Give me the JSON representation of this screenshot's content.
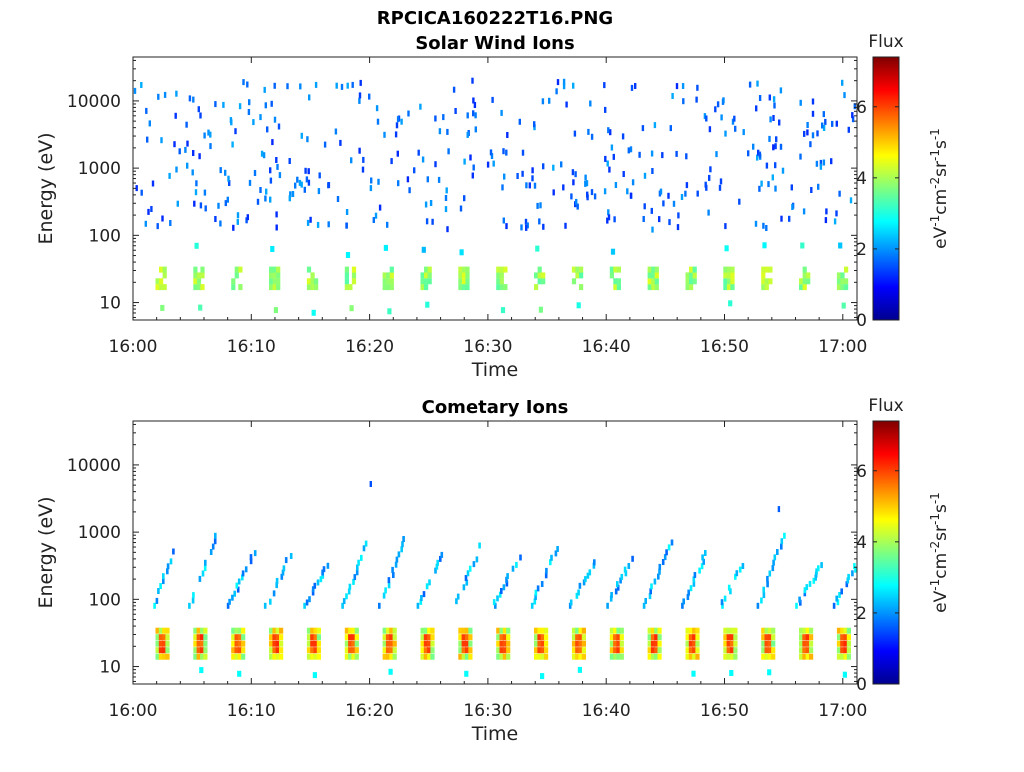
{
  "figure_title": "RPCICA160222T16.PNG",
  "colormap": [
    "#00008f",
    "#0000ff",
    "#007fff",
    "#00ffff",
    "#7fff7f",
    "#ffff00",
    "#ff7f00",
    "#ff0000",
    "#7f0000"
  ],
  "chart_data": [
    {
      "type": "heatmap",
      "title": "Solar Wind Ions",
      "xlabel": "Time",
      "ylabel": "Energy (eV)",
      "x_ticks": [
        "16:00",
        "16:10",
        "16:20",
        "16:30",
        "16:40",
        "16:50",
        "17:00"
      ],
      "x_range_minutes": [
        0,
        61.2
      ],
      "y_scale": "log",
      "y_ticks": [
        10,
        100,
        1000,
        10000
      ],
      "y_tick_labels": [
        "10",
        "100",
        "1000",
        "10000"
      ],
      "y_range": [
        5.5,
        45000
      ],
      "colorbar": {
        "label": "Flux",
        "units": "eV-1cm-2sr-1s-1",
        "ticks": [
          0,
          2,
          4,
          6
        ],
        "range": [
          0,
          7.4
        ]
      },
      "pattern": {
        "pulse_period_min": 3.2,
        "pulse_start_min": 1.9,
        "low_energy_core": [
          17,
          33
        ],
        "core_flux": [
          3.4,
          4.4
        ],
        "scatter_energy_range": [
          120,
          20000
        ],
        "scatter_flux": [
          1.2,
          2.2
        ]
      }
    },
    {
      "type": "heatmap",
      "title": "Cometary Ions",
      "xlabel": "Time",
      "ylabel": "Energy (eV)",
      "x_ticks": [
        "16:00",
        "16:10",
        "16:20",
        "16:30",
        "16:40",
        "16:50",
        "17:00"
      ],
      "x_range_minutes": [
        0,
        61.2
      ],
      "y_scale": "log",
      "y_ticks": [
        10,
        100,
        1000,
        10000
      ],
      "y_tick_labels": [
        "10",
        "100",
        "1000",
        "10000"
      ],
      "y_range": [
        5.5,
        45000
      ],
      "colorbar": {
        "label": "Flux",
        "units": "eV-1cm-2sr-1s-1",
        "ticks": [
          0,
          2,
          4,
          6
        ],
        "range": [
          0,
          7.4
        ]
      },
      "pattern": {
        "pulse_period_min": 3.2,
        "pulse_start_min": 1.9,
        "core_energy": [
          14,
          40
        ],
        "core_peak_flux": 6.2,
        "streak_start_energy": 80,
        "streak_end_energy": [
          300,
          900
        ],
        "streak_flux": [
          1.6,
          2.8
        ]
      }
    }
  ]
}
